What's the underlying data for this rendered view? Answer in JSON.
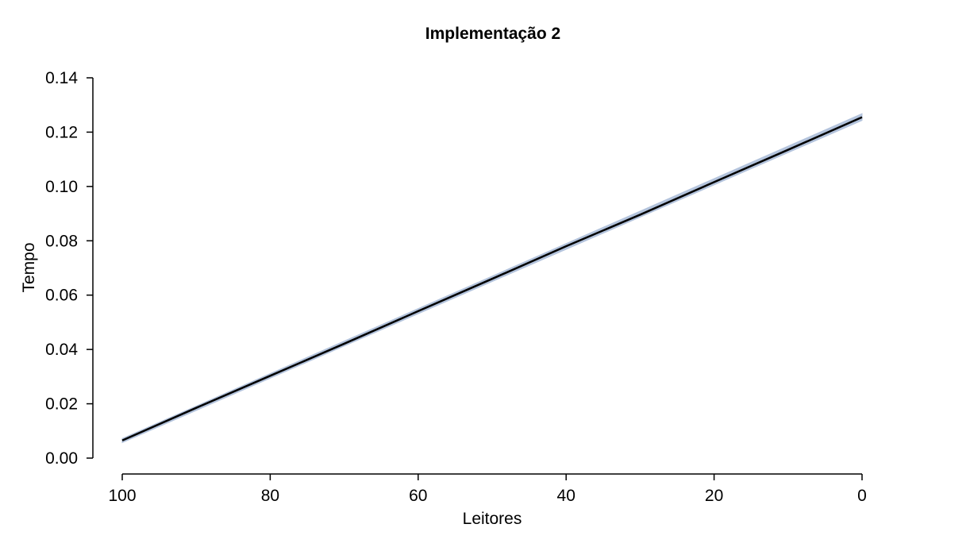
{
  "chart_data": {
    "type": "line",
    "title": "Implementação 2",
    "xlabel": "Leitores",
    "ylabel": "Tempo",
    "x_reversed": true,
    "xlim": [
      100,
      0
    ],
    "ylim": [
      0,
      0.14
    ],
    "x_ticks": [
      100,
      80,
      60,
      40,
      20,
      0
    ],
    "x_tick_labels": [
      "100",
      "80",
      "60",
      "40",
      "20",
      "0"
    ],
    "y_ticks": [
      0,
      0.02,
      0.04,
      0.06,
      0.08,
      0.1,
      0.12,
      0.14
    ],
    "y_tick_labels": [
      "0.00",
      "0.02",
      "0.04",
      "0.06",
      "0.08",
      "0.10",
      "0.12",
      "0.14"
    ],
    "grid": false,
    "series": [
      {
        "role": "band",
        "color": "#b3c3dc",
        "x": [
          100,
          0
        ],
        "lower": [
          0.0057,
          0.1243
        ],
        "upper": [
          0.0072,
          0.1268
        ]
      },
      {
        "role": "mean",
        "color": "#000000",
        "x": [
          100,
          90,
          80,
          70,
          60,
          50,
          40,
          30,
          20,
          10,
          0
        ],
        "values": [
          0.0065,
          0.0185,
          0.0303,
          0.0421,
          0.0541,
          0.066,
          0.078,
          0.0896,
          0.1016,
          0.1135,
          0.1255
        ]
      }
    ]
  }
}
